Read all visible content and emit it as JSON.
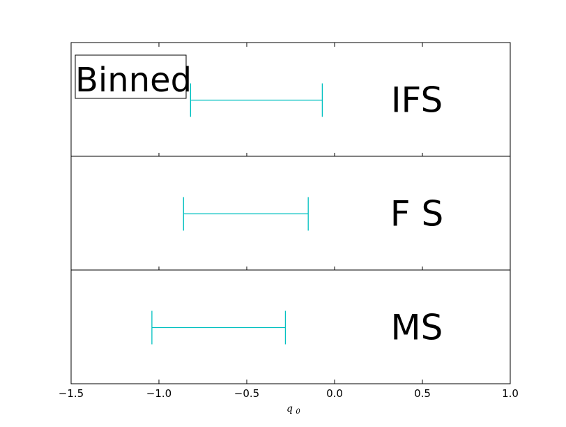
{
  "chart_data": {
    "type": "errorbar",
    "xlabel": "q0",
    "xlabel_main": "q",
    "xlabel_sub": "0",
    "xlim": [
      -1.5,
      1.0
    ],
    "xticks": [
      -1.5,
      -1.0,
      -0.5,
      0.0,
      0.5,
      1.0
    ],
    "xtick_labels": [
      "−1.5",
      "−1.0",
      "−0.5",
      "0.0",
      "0.5",
      "1.0"
    ],
    "annotation": "Binned",
    "color": "#00c0c0",
    "panels": [
      {
        "label": "IFS",
        "interval": [
          -0.82,
          -0.07
        ]
      },
      {
        "label": "F S",
        "interval": [
          -0.86,
          -0.15
        ]
      },
      {
        "label": "MS",
        "interval": [
          -1.04,
          -0.28
        ]
      }
    ]
  }
}
